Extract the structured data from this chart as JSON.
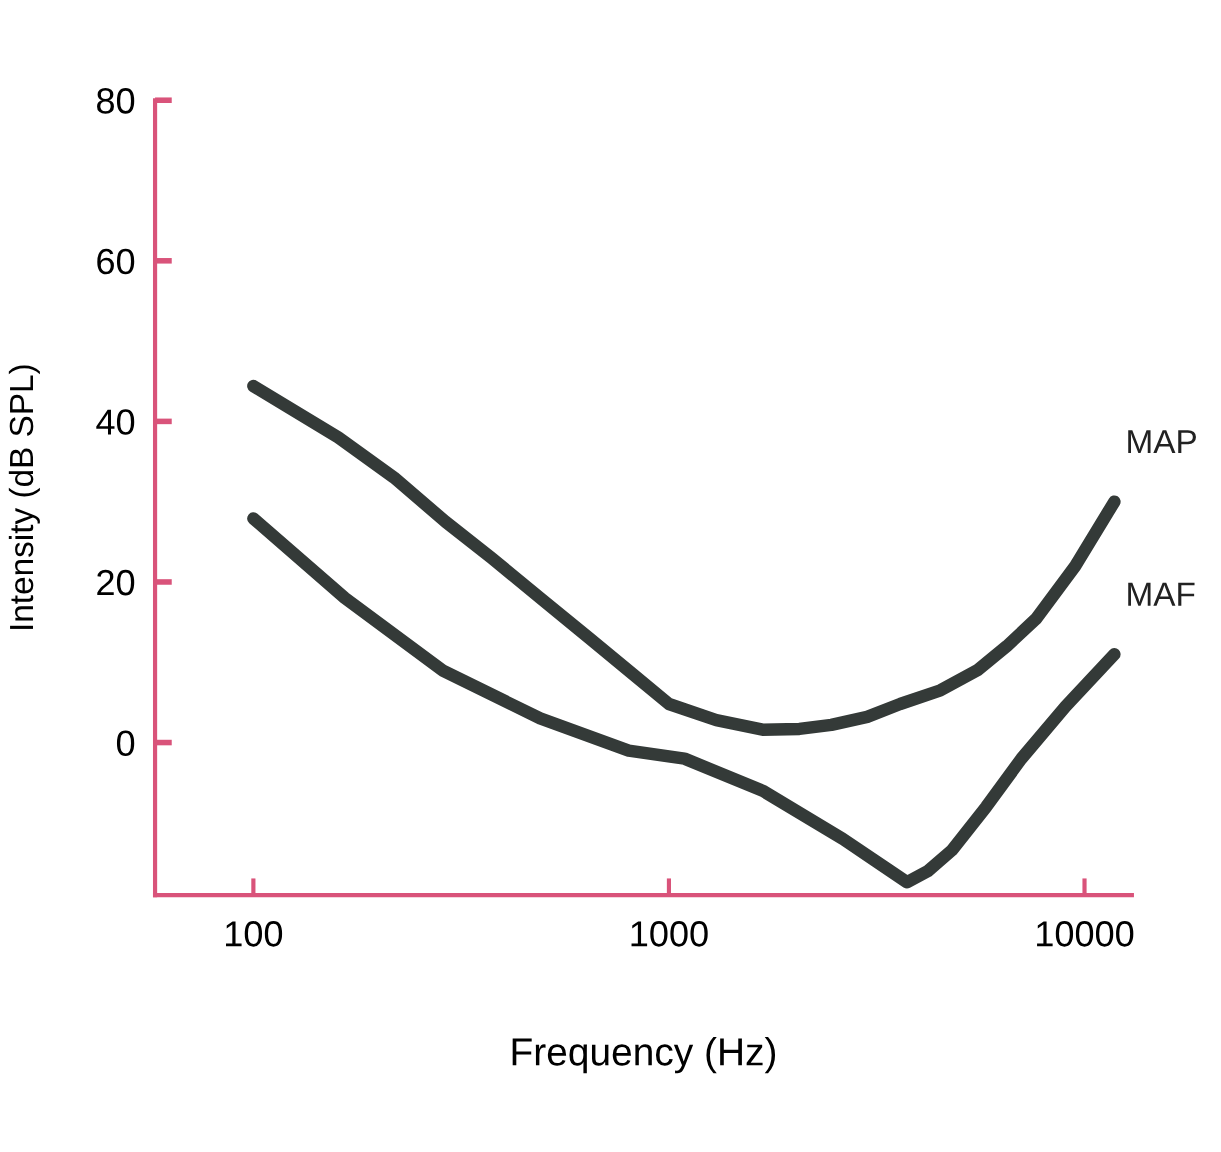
{
  "chart_data": {
    "type": "line",
    "xlabel": "Frequency (Hz)",
    "ylabel": "Intensity (dB SPL)",
    "log": "x",
    "xlim": [
      58,
      13000
    ],
    "xticks": [
      100,
      1000,
      10000
    ],
    "ylim": [
      -19,
      80
    ],
    "yticks": [
      0,
      20,
      40,
      60,
      80
    ],
    "grid": false,
    "legend": false,
    "line_style": "solid",
    "series": [
      {
        "name": "MAP",
        "color": "#343a38",
        "x": [
          100,
          160,
          218,
          290,
          374,
          490,
          643,
          820,
          1000,
          1300,
          1680,
          2060,
          2460,
          3000,
          3600,
          4500,
          5520,
          6500,
          7640,
          9500,
          11800
        ],
        "values": [
          44.4,
          38,
          33,
          27.5,
          23,
          18,
          13,
          8.5,
          4.8,
          2.8,
          1.6,
          1.7,
          2.2,
          3.2,
          4.8,
          6.5,
          9,
          12,
          15.4,
          22,
          30
        ]
      },
      {
        "name": "MAF",
        "color": "#343a38",
        "x": [
          100,
          166,
          285,
          490,
          800,
          1090,
          1680,
          2620,
          3300,
          3740,
          4200,
          4800,
          5800,
          7050,
          9000,
          11800
        ],
        "values": [
          27.9,
          18,
          9,
          3,
          -1,
          -2,
          -6,
          -12,
          -15.5,
          -17.4,
          -16,
          -13.4,
          -8,
          -2,
          4.5,
          11
        ]
      }
    ]
  }
}
